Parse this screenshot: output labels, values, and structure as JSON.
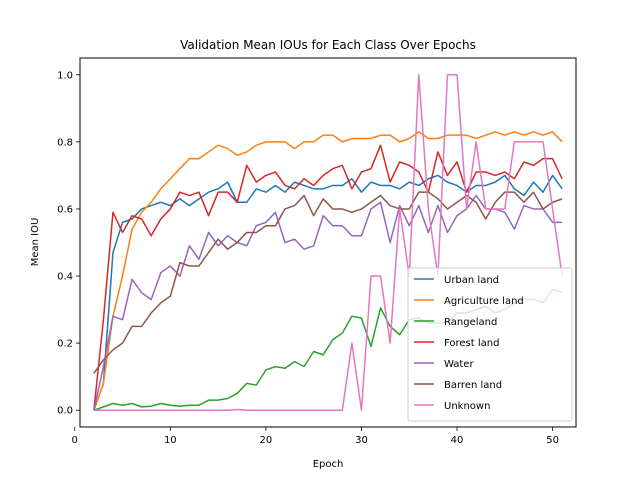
{
  "chart_data": {
    "type": "line",
    "title": "Validation Mean IOUs for Each Class Over Epochs",
    "xlabel": "Epoch",
    "ylabel": "Mean IOU",
    "xlim": [
      0.55,
      52.45
    ],
    "ylim": [
      -0.05,
      1.05
    ],
    "x_ticks": [
      0,
      10,
      20,
      30,
      40,
      50
    ],
    "y_ticks": [
      0.0,
      0.2,
      0.4,
      0.6,
      0.8,
      1.0
    ],
    "x_tick_labels": [
      "0",
      "10",
      "20",
      "30",
      "40",
      "50"
    ],
    "y_tick_labels": [
      "0.0",
      "0.2",
      "0.4",
      "0.6",
      "0.8",
      "1.0"
    ],
    "grid": false,
    "legend_position": "lower-right",
    "x": [
      2,
      3,
      4,
      5,
      6,
      7,
      8,
      9,
      10,
      11,
      12,
      13,
      14,
      15,
      16,
      17,
      18,
      19,
      20,
      21,
      22,
      23,
      24,
      25,
      26,
      27,
      28,
      29,
      30,
      31,
      32,
      33,
      34,
      35,
      36,
      37,
      38,
      39,
      40,
      41,
      42,
      43,
      44,
      45,
      46,
      47,
      48,
      49,
      50,
      51
    ],
    "series": [
      {
        "name": "Urban land",
        "color": "#1f77b4",
        "values": [
          0.0,
          0.08,
          0.47,
          0.56,
          0.57,
          0.6,
          0.61,
          0.62,
          0.61,
          0.63,
          0.61,
          0.63,
          0.65,
          0.66,
          0.68,
          0.62,
          0.62,
          0.66,
          0.65,
          0.67,
          0.65,
          0.68,
          0.67,
          0.66,
          0.66,
          0.67,
          0.67,
          0.69,
          0.65,
          0.68,
          0.67,
          0.67,
          0.66,
          0.68,
          0.67,
          0.69,
          0.7,
          0.68,
          0.67,
          0.65,
          0.67,
          0.67,
          0.68,
          0.7,
          0.66,
          0.64,
          0.68,
          0.65,
          0.7,
          0.66
        ]
      },
      {
        "name": "Agriculture land",
        "color": "#ff7f0e",
        "values": [
          0.0,
          0.08,
          0.28,
          0.4,
          0.54,
          0.59,
          0.62,
          0.66,
          0.69,
          0.72,
          0.75,
          0.75,
          0.77,
          0.79,
          0.78,
          0.76,
          0.77,
          0.79,
          0.8,
          0.8,
          0.8,
          0.78,
          0.8,
          0.8,
          0.82,
          0.82,
          0.8,
          0.81,
          0.81,
          0.81,
          0.82,
          0.82,
          0.8,
          0.81,
          0.83,
          0.81,
          0.81,
          0.82,
          0.82,
          0.82,
          0.81,
          0.82,
          0.83,
          0.82,
          0.83,
          0.82,
          0.83,
          0.82,
          0.83,
          0.8
        ]
      },
      {
        "name": "Rangeland",
        "color": "#2ca02c",
        "values": [
          0.0,
          0.01,
          0.02,
          0.015,
          0.02,
          0.01,
          0.012,
          0.02,
          0.015,
          0.012,
          0.015,
          0.015,
          0.03,
          0.03,
          0.035,
          0.05,
          0.08,
          0.075,
          0.12,
          0.13,
          0.125,
          0.145,
          0.13,
          0.175,
          0.165,
          0.21,
          0.23,
          0.28,
          0.275,
          0.19,
          0.305,
          0.25,
          0.225,
          0.27,
          0.275,
          0.26,
          0.26,
          0.26,
          0.29,
          0.29,
          0.3,
          0.31,
          0.29,
          0.3,
          0.32,
          0.33,
          0.33,
          0.32,
          0.36,
          0.35
        ]
      },
      {
        "name": "Forest land",
        "color": "#d62728",
        "values": [
          0.0,
          0.27,
          0.59,
          0.53,
          0.58,
          0.57,
          0.52,
          0.57,
          0.6,
          0.65,
          0.64,
          0.65,
          0.58,
          0.65,
          0.65,
          0.62,
          0.73,
          0.68,
          0.7,
          0.71,
          0.67,
          0.66,
          0.69,
          0.67,
          0.7,
          0.72,
          0.73,
          0.66,
          0.71,
          0.72,
          0.79,
          0.68,
          0.74,
          0.73,
          0.71,
          0.65,
          0.77,
          0.7,
          0.74,
          0.65,
          0.71,
          0.71,
          0.7,
          0.71,
          0.69,
          0.74,
          0.73,
          0.75,
          0.75,
          0.69
        ]
      },
      {
        "name": "Water",
        "color": "#9467bd",
        "values": [
          0.0,
          0.13,
          0.28,
          0.27,
          0.39,
          0.35,
          0.33,
          0.41,
          0.43,
          0.4,
          0.49,
          0.45,
          0.53,
          0.49,
          0.52,
          0.5,
          0.49,
          0.55,
          0.56,
          0.59,
          0.5,
          0.51,
          0.48,
          0.49,
          0.58,
          0.55,
          0.55,
          0.52,
          0.52,
          0.6,
          0.62,
          0.5,
          0.61,
          0.55,
          0.61,
          0.53,
          0.61,
          0.53,
          0.58,
          0.6,
          0.64,
          0.6,
          0.6,
          0.59,
          0.54,
          0.61,
          0.6,
          0.6,
          0.56,
          0.56
        ]
      },
      {
        "name": "Barren land",
        "color": "#8c564b",
        "values": [
          0.11,
          0.15,
          0.18,
          0.2,
          0.25,
          0.25,
          0.29,
          0.32,
          0.34,
          0.44,
          0.43,
          0.43,
          0.47,
          0.51,
          0.48,
          0.5,
          0.53,
          0.53,
          0.55,
          0.55,
          0.6,
          0.61,
          0.64,
          0.58,
          0.63,
          0.6,
          0.6,
          0.59,
          0.6,
          0.62,
          0.64,
          0.61,
          0.6,
          0.6,
          0.65,
          0.65,
          0.63,
          0.6,
          0.62,
          0.64,
          0.62,
          0.57,
          0.62,
          0.65,
          0.65,
          0.62,
          0.65,
          0.6,
          0.62,
          0.63
        ]
      },
      {
        "name": "Unknown",
        "color": "#e377c2",
        "values": [
          0.0,
          0.0,
          0.0,
          0.0,
          0.0,
          0.0,
          0.0,
          0.0,
          0.0,
          0.0,
          0.0,
          0.0,
          0.0,
          0.0,
          0.0,
          0.002,
          0.0,
          0.0,
          0.0,
          0.0,
          0.0,
          0.0,
          0.0,
          0.0,
          0.0,
          0.0,
          0.0,
          0.2,
          0.0,
          0.4,
          0.4,
          0.2,
          0.6,
          0.4,
          1.0,
          0.6,
          0.4,
          1.0,
          1.0,
          0.6,
          0.8,
          0.6,
          0.6,
          0.6,
          0.8,
          0.8,
          0.8,
          0.8,
          0.6,
          0.4
        ]
      }
    ]
  }
}
